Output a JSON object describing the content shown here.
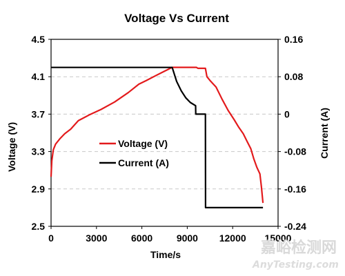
{
  "chart_data": {
    "type": "line",
    "title": "Voltage Vs Current",
    "xlabel": "Time/s",
    "ylabel_left": "Voltage (V)",
    "ylabel_right": "Current (A)",
    "xlim": [
      0,
      15000
    ],
    "ylim_left": [
      2.5,
      4.5
    ],
    "ylim_right": [
      -0.24,
      0.16
    ],
    "xticks": [
      "0",
      "3000",
      "6000",
      "9000",
      "12000",
      "15000"
    ],
    "yticks_left": [
      "2.5",
      "2.9",
      "3.3",
      "3.7",
      "4.1",
      "4.5"
    ],
    "yticks_right": [
      "-0.24",
      "-0.16",
      "-0.08",
      "0",
      "0.08",
      "0.16"
    ],
    "grid": "horizontal dashed",
    "legend_position": "center-left",
    "series": [
      {
        "name": "Voltage (V)",
        "axis": "left",
        "color": "#e31a1c",
        "x": [
          0,
          50,
          150,
          300,
          600,
          900,
          1300,
          1800,
          2500,
          3300,
          4200,
          5100,
          5800,
          6300,
          6900,
          7500,
          8000,
          8300,
          9000,
          9600,
          9700,
          10000,
          10200,
          10300,
          10500,
          10900,
          11300,
          11700,
          12100,
          12400,
          12700,
          12950,
          13200,
          13400,
          13600,
          13800,
          13900,
          14000
        ],
        "y": [
          3.03,
          3.2,
          3.32,
          3.38,
          3.44,
          3.49,
          3.54,
          3.63,
          3.69,
          3.75,
          3.83,
          3.93,
          4.02,
          4.06,
          4.11,
          4.16,
          4.2,
          4.2,
          4.2,
          4.2,
          4.19,
          4.19,
          4.19,
          4.1,
          4.06,
          3.99,
          3.86,
          3.74,
          3.64,
          3.56,
          3.49,
          3.41,
          3.33,
          3.22,
          3.13,
          3.06,
          2.92,
          2.75
        ]
      },
      {
        "name": "Current (A)",
        "axis": "right",
        "color": "#000000",
        "x": [
          0,
          8000,
          8050,
          8300,
          8600,
          8900,
          9200,
          9550,
          9560,
          9700,
          10200,
          10210,
          12000,
          14000
        ],
        "y": [
          0.1,
          0.1,
          0.095,
          0.07,
          0.05,
          0.035,
          0.025,
          0.018,
          0.0,
          0.0,
          0.0,
          -0.2,
          -0.2,
          -0.2
        ]
      }
    ]
  },
  "watermark": {
    "text_cn": "嘉峪检测网",
    "text_en": "AnyTesting.com"
  }
}
